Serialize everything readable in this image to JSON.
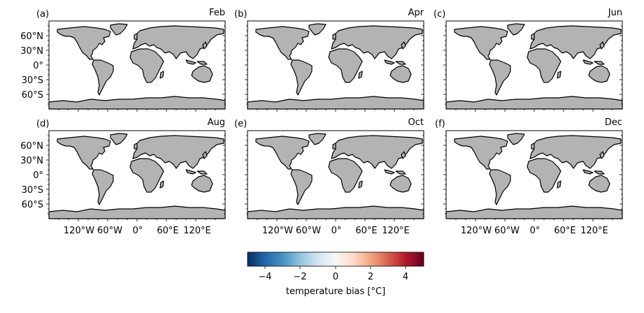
{
  "panels": [
    {
      "letter": "(a)",
      "month": "Feb"
    },
    {
      "letter": "(b)",
      "month": "Apr"
    },
    {
      "letter": "(c)",
      "month": "Jun"
    },
    {
      "letter": "(d)",
      "month": "Aug"
    },
    {
      "letter": "(e)",
      "month": "Oct"
    },
    {
      "letter": "(f)",
      "month": "Dec"
    }
  ],
  "lat_ticks": [
    "60°N",
    "30°N",
    "0°",
    "30°S",
    "60°S"
  ],
  "lon_ticks": [
    "120°W",
    "60°W",
    "0°",
    "60°E",
    "120°E"
  ],
  "colorbar": {
    "label": "temperature bias [°C]",
    "min": -5,
    "max": 5,
    "ticks": [
      "−4",
      "−2",
      "0",
      "2",
      "4"
    ],
    "colormap": "RdBu_r"
  },
  "colors": {
    "land": "#b3b3b3",
    "ocean": "#ffffff",
    "coastline": "#000000"
  }
}
